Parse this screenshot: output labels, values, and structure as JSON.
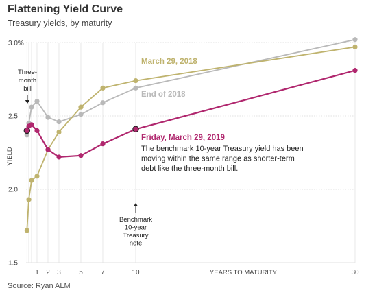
{
  "header": {
    "title": "Flattening Yield Curve",
    "subtitle": "Treasury yields, by maturity"
  },
  "footer": {
    "source": "Source: Ryan ALM"
  },
  "colors": {
    "march_2018": "#bfb36e",
    "end_2018": "#b9b9b9",
    "march_2019": "#b0276e"
  },
  "chart_data": {
    "type": "line",
    "title": "Flattening Yield Curve",
    "subtitle": "Treasury yields, by maturity",
    "xlabel": "YEARS TO MATURITY",
    "ylabel": "YIELD",
    "xlim": [
      0,
      30
    ],
    "ylim": [
      1.5,
      3.0
    ],
    "x_ticks": [
      {
        "value": 1,
        "label": "1"
      },
      {
        "value": 2,
        "label": "2"
      },
      {
        "value": 3,
        "label": "3"
      },
      {
        "value": 5,
        "label": "5"
      },
      {
        "value": 7,
        "label": "7"
      },
      {
        "value": 10,
        "label": "10"
      },
      {
        "value": 30,
        "label": "30"
      }
    ],
    "y_ticks": [
      {
        "value": 3.0,
        "label": "3.0%"
      },
      {
        "value": 2.5,
        "label": "2.5"
      },
      {
        "value": 2.0,
        "label": "2.0"
      },
      {
        "value": 1.5,
        "label": "1.5"
      }
    ],
    "grid": {
      "y": true,
      "x_at_points": true
    },
    "series": [
      {
        "name": "March 29, 2018",
        "color": "#bfb36e",
        "points": [
          {
            "x": 0.083,
            "y": 1.72
          },
          {
            "x": 0.25,
            "y": 1.93
          },
          {
            "x": 0.5,
            "y": 2.06
          },
          {
            "x": 1,
            "y": 2.09
          },
          {
            "x": 2,
            "y": 2.27
          },
          {
            "x": 3,
            "y": 2.39
          },
          {
            "x": 5,
            "y": 2.56
          },
          {
            "x": 7,
            "y": 2.69
          },
          {
            "x": 10,
            "y": 2.74
          },
          {
            "x": 30,
            "y": 2.97
          }
        ]
      },
      {
        "name": "End of 2018",
        "color": "#b9b9b9",
        "points": [
          {
            "x": 0.083,
            "y": 2.37
          },
          {
            "x": 0.25,
            "y": 2.45
          },
          {
            "x": 0.5,
            "y": 2.56
          },
          {
            "x": 1,
            "y": 2.6
          },
          {
            "x": 2,
            "y": 2.49
          },
          {
            "x": 3,
            "y": 2.46
          },
          {
            "x": 5,
            "y": 2.51
          },
          {
            "x": 7,
            "y": 2.59
          },
          {
            "x": 10,
            "y": 2.69
          },
          {
            "x": 30,
            "y": 3.02
          }
        ]
      },
      {
        "name": "Friday, March 29, 2019",
        "color": "#b0276e",
        "points": [
          {
            "x": 0.083,
            "y": 2.4
          },
          {
            "x": 0.25,
            "y": 2.43
          },
          {
            "x": 0.5,
            "y": 2.44
          },
          {
            "x": 1,
            "y": 2.4
          },
          {
            "x": 2,
            "y": 2.27
          },
          {
            "x": 3,
            "y": 2.22
          },
          {
            "x": 5,
            "y": 2.23
          },
          {
            "x": 7,
            "y": 2.31
          },
          {
            "x": 10,
            "y": 2.41
          },
          {
            "x": 30,
            "y": 2.81
          }
        ]
      }
    ],
    "highlighted_points": [
      {
        "series": "End of 2018",
        "x": 0.083,
        "y": 2.4
      },
      {
        "series": "Friday, March 29, 2019",
        "x": 10,
        "y": 2.41
      }
    ],
    "annotations": {
      "three_month": [
        "Three-",
        "month",
        "bill"
      ],
      "benchmark": [
        "Benchmark",
        "10-year",
        "Treasury",
        "note"
      ],
      "description": [
        "The benchmark 10-year Treasury yield has been",
        "moving within the same range as shorter-term",
        "debt like the three-month bill."
      ]
    }
  }
}
